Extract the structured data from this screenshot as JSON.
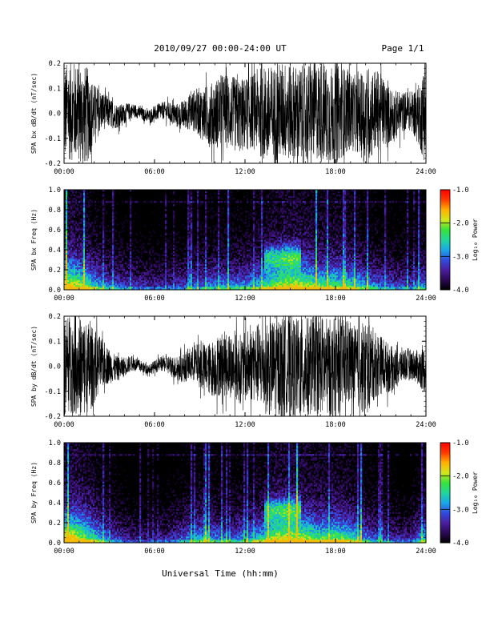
{
  "header": {
    "title": "2010/09/27   00:00-24:00 UT",
    "page": "Page 1/1"
  },
  "footer": {
    "xlabel": "Universal Time (hh:mm)"
  },
  "x_tick_labels": [
    "00:00",
    "06:00",
    "12:00",
    "18:00",
    "24:00"
  ],
  "colors": {
    "trace": "#000000",
    "spectrogram_background": "#000000",
    "colormap": [
      "#000000",
      "#2b0a55",
      "#4b1ea0",
      "#2f4de0",
      "#1aa8e8",
      "#21d79a",
      "#39e33a",
      "#d2e61d",
      "#ffb000",
      "#ff3a00",
      "#ff0000"
    ]
  },
  "chart_data": [
    {
      "type": "line",
      "title": "",
      "xlabel": "",
      "ylabel": "SPA bx dB/dt (nT/sec)",
      "xlim": [
        0,
        24
      ],
      "ylim": [
        -0.2,
        0.2
      ],
      "yticks": [
        "0.2",
        "0.1",
        "0.0",
        "-0.1",
        "-0.2"
      ],
      "envelope": {
        "x": [
          0,
          0.5,
          1,
          1.5,
          2,
          2.5,
          3,
          3.5,
          4,
          4.5,
          5,
          5.5,
          6,
          6.5,
          7,
          7.5,
          8,
          8.5,
          9,
          9.5,
          10,
          10.5,
          11,
          11.5,
          12,
          12.5,
          13,
          13.5,
          14,
          14.5,
          15,
          15.5,
          16,
          16.5,
          17,
          17.5,
          18,
          18.5,
          19,
          19.5,
          20,
          20.5,
          21,
          21.5,
          22,
          22.5,
          23,
          23.5,
          24
        ],
        "amplitude": [
          0.2,
          0.2,
          0.2,
          0.2,
          0.12,
          0.08,
          0.06,
          0.05,
          0.04,
          0.03,
          0.025,
          0.025,
          0.03,
          0.035,
          0.04,
          0.05,
          0.06,
          0.08,
          0.1,
          0.12,
          0.14,
          0.15,
          0.15,
          0.15,
          0.15,
          0.15,
          0.18,
          0.2,
          0.2,
          0.2,
          0.2,
          0.2,
          0.2,
          0.2,
          0.2,
          0.2,
          0.2,
          0.18,
          0.16,
          0.15,
          0.2,
          0.18,
          0.15,
          0.12,
          0.1,
          0.08,
          0.08,
          0.12,
          0.2
        ]
      }
    },
    {
      "type": "heatmap",
      "title": "",
      "xlabel": "",
      "ylabel": "SPA bx Freq (Hz)",
      "colorbar_label": "Log₁₀ Power",
      "xlim": [
        0,
        24
      ],
      "ylim": [
        0,
        1.0
      ],
      "yticks": [
        "1.0",
        "0.8",
        "0.6",
        "0.4",
        "0.2",
        "0.0"
      ],
      "colorbar_range": [
        -4.0,
        -1.0
      ],
      "colorbar_ticks": [
        "-1.0",
        "-2.0",
        "-3.0",
        "-4.0"
      ],
      "features": {
        "x": [
          0,
          1,
          2,
          3,
          4,
          5,
          6,
          7,
          8,
          9,
          10,
          11,
          12,
          13,
          14,
          15,
          16,
          17,
          18,
          19,
          20,
          21,
          22,
          23,
          24
        ],
        "activity": [
          0.9,
          0.8,
          0.6,
          0.45,
          0.4,
          0.35,
          0.35,
          0.35,
          0.4,
          0.45,
          0.5,
          0.5,
          0.5,
          0.6,
          0.75,
          0.85,
          0.8,
          0.7,
          0.7,
          0.65,
          0.55,
          0.45,
          0.4,
          0.4,
          0.5
        ]
      }
    },
    {
      "type": "line",
      "title": "",
      "xlabel": "",
      "ylabel": "SPA by dB/dt (nT/sec)",
      "xlim": [
        0,
        24
      ],
      "ylim": [
        -0.2,
        0.2
      ],
      "yticks": [
        "0.2",
        "0.1",
        "0.0",
        "-0.1",
        "-0.2"
      ],
      "envelope": {
        "x": [
          0,
          0.5,
          1,
          1.5,
          2,
          2.5,
          3,
          3.5,
          4,
          4.5,
          5,
          5.5,
          6,
          6.5,
          7,
          7.5,
          8,
          8.5,
          9,
          9.5,
          10,
          10.5,
          11,
          11.5,
          12,
          12.5,
          13,
          13.5,
          14,
          14.5,
          15,
          15.5,
          16,
          16.5,
          17,
          17.5,
          18,
          18.5,
          19,
          19.5,
          20,
          20.5,
          21,
          21.5,
          22,
          22.5,
          23,
          23.5,
          24
        ],
        "amplitude": [
          0.2,
          0.2,
          0.2,
          0.2,
          0.15,
          0.1,
          0.07,
          0.05,
          0.04,
          0.03,
          0.025,
          0.02,
          0.025,
          0.03,
          0.04,
          0.05,
          0.06,
          0.07,
          0.09,
          0.1,
          0.12,
          0.13,
          0.13,
          0.14,
          0.14,
          0.15,
          0.17,
          0.19,
          0.2,
          0.2,
          0.2,
          0.2,
          0.2,
          0.2,
          0.2,
          0.2,
          0.2,
          0.18,
          0.17,
          0.16,
          0.2,
          0.15,
          0.12,
          0.1,
          0.08,
          0.07,
          0.06,
          0.07,
          0.1
        ]
      }
    },
    {
      "type": "heatmap",
      "title": "",
      "xlabel": "",
      "ylabel": "SPA by Freq (Hz)",
      "colorbar_label": "Log₁₀ Power",
      "xlim": [
        0,
        24
      ],
      "ylim": [
        0,
        1.0
      ],
      "yticks": [
        "1.0",
        "0.8",
        "0.6",
        "0.4",
        "0.2",
        "0.0"
      ],
      "colorbar_range": [
        -4.0,
        -1.0
      ],
      "colorbar_ticks": [
        "-1.0",
        "-2.0",
        "-3.0",
        "-4.0"
      ],
      "features": {
        "x": [
          0,
          1,
          2,
          3,
          4,
          5,
          6,
          7,
          8,
          9,
          10,
          11,
          12,
          13,
          14,
          15,
          16,
          17,
          18,
          19,
          20,
          21,
          22,
          23,
          24
        ],
        "activity": [
          0.95,
          0.85,
          0.65,
          0.45,
          0.35,
          0.3,
          0.3,
          0.35,
          0.45,
          0.55,
          0.5,
          0.45,
          0.5,
          0.6,
          0.8,
          0.85,
          0.8,
          0.7,
          0.75,
          0.65,
          0.5,
          0.4,
          0.35,
          0.35,
          0.6
        ]
      }
    }
  ]
}
